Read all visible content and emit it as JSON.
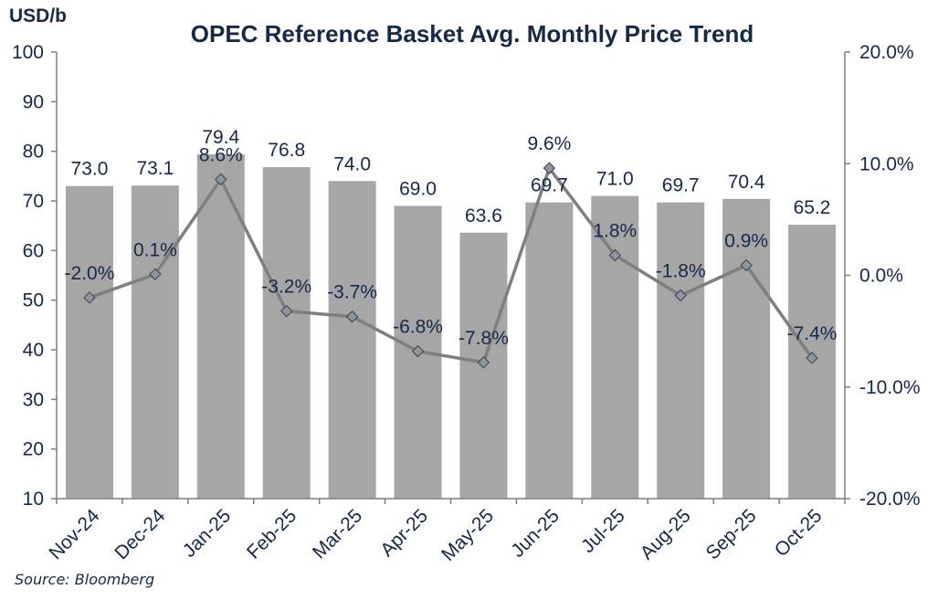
{
  "chart_data": {
    "type": "bar+line",
    "title": "OPEC Reference Basket Avg. Monthly Price Trend",
    "ylabel_left": "USD/b",
    "ylim_left": [
      10,
      100
    ],
    "left_ticks": [
      "10",
      "20",
      "30",
      "40",
      "50",
      "60",
      "70",
      "80",
      "90",
      "100"
    ],
    "ylim_right": [
      -20,
      20
    ],
    "right_ticks": [
      "-20.0%",
      "-10.0%",
      "0.0%",
      "10.0%",
      "20.0%"
    ],
    "categories": [
      "Nov-24",
      "Dec-24",
      "Jan-25",
      "Feb-25",
      "Mar-25",
      "Apr-25",
      "May-25",
      "Jun-25",
      "Jul-25",
      "Aug-25",
      "Sep-25",
      "Oct-25"
    ],
    "series": [
      {
        "name": "Avg. Monthly Price",
        "axis": "left",
        "kind": "bar",
        "color": "#a6a6a6",
        "values": [
          73.0,
          73.1,
          79.4,
          76.8,
          74.0,
          69.0,
          63.6,
          69.7,
          71.0,
          69.7,
          70.4,
          65.2
        ],
        "labels": [
          "73.0",
          "73.1",
          "79.4",
          "76.8",
          "74.0",
          "69.0",
          "63.6",
          "69.7",
          "71.0",
          "69.7",
          "70.4",
          "65.2"
        ]
      },
      {
        "name": "Monthly % Change",
        "axis": "right",
        "kind": "line",
        "color": "#7f7f7f",
        "marker_color": "#8c97a3",
        "values": [
          -2.0,
          0.1,
          8.6,
          -3.2,
          -3.7,
          -6.8,
          -7.8,
          9.6,
          1.8,
          -1.8,
          0.9,
          -7.4
        ],
        "labels": [
          "-2.0%",
          "0.1%",
          "8.6%",
          "-3.2%",
          "-3.7%",
          "-6.8%",
          "-7.8%",
          "9.6%",
          "1.8%",
          "-1.8%",
          "0.9%",
          "-7.4%"
        ]
      }
    ],
    "source": "Source: Bloomberg"
  }
}
